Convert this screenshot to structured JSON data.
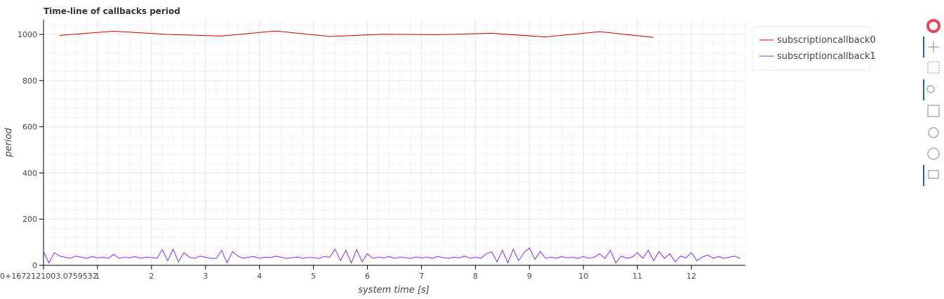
{
  "chart_data": {
    "type": "line",
    "title": "Time-line of callbacks period",
    "x_label": "system time [s]",
    "y_label": "period",
    "xlim": [
      0,
      13
    ],
    "ylim": [
      0,
      1064
    ],
    "xticks": [
      {
        "value": 0,
        "label": "0+1672121003.0759532"
      },
      1,
      2,
      3,
      4,
      5,
      6,
      7,
      8,
      9,
      10,
      11,
      12
    ],
    "yticks": [
      0,
      200,
      400,
      600,
      800,
      1000
    ],
    "grid": true,
    "legend": "outside-right",
    "series": [
      {
        "name": "subscriptioncallback0",
        "color": "#cc0000",
        "x": [
          0.3,
          1.3,
          2.3,
          3.3,
          4.3,
          5.3,
          6.3,
          7.3,
          8.3,
          9.3,
          10.3,
          11.3
        ],
        "values": [
          996,
          1014,
          1000,
          993,
          1015,
          991,
          1001,
          999,
          1005,
          989,
          1012,
          987
        ]
      },
      {
        "name": "subscriptioncallback1",
        "color": "#7f2aff",
        "x": [
          0.0,
          0.1,
          0.2,
          0.3,
          0.4,
          0.5,
          0.6,
          0.7,
          0.8,
          0.9,
          1.0,
          1.1,
          1.2,
          1.3,
          1.4,
          1.5,
          1.6,
          1.7,
          1.8,
          1.9,
          2.0,
          2.1,
          2.2,
          2.3,
          2.4,
          2.5,
          2.6,
          2.7,
          2.8,
          2.9,
          3.0,
          3.1,
          3.2,
          3.3,
          3.4,
          3.5,
          3.6,
          3.7,
          3.8,
          3.9,
          4.0,
          4.1,
          4.2,
          4.3,
          4.4,
          4.5,
          4.6,
          4.7,
          4.8,
          4.9,
          5.0,
          5.1,
          5.2,
          5.3,
          5.4,
          5.5,
          5.6,
          5.7,
          5.8,
          5.9,
          6.0,
          6.1,
          6.2,
          6.3,
          6.4,
          6.5,
          6.6,
          6.7,
          6.8,
          6.9,
          7.0,
          7.1,
          7.2,
          7.3,
          7.4,
          7.5,
          7.6,
          7.7,
          7.8,
          7.9,
          8.0,
          8.1,
          8.2,
          8.3,
          8.4,
          8.5,
          8.6,
          8.7,
          8.8,
          8.9,
          9.0,
          9.1,
          9.2,
          9.3,
          9.4,
          9.5,
          9.6,
          9.7,
          9.8,
          9.9,
          10.0,
          10.1,
          10.2,
          10.3,
          10.4,
          10.5,
          10.6,
          10.7,
          10.8,
          10.9,
          11.0,
          11.1,
          11.2,
          11.3,
          11.4,
          11.5,
          11.6,
          11.7,
          11.8,
          11.9,
          12.0,
          12.1,
          12.2,
          12.3,
          12.4,
          12.5,
          12.6,
          12.7,
          12.8,
          12.9
        ],
        "values": [
          60,
          10,
          55,
          40,
          35,
          30,
          40,
          35,
          30,
          38,
          32,
          35,
          30,
          48,
          30,
          35,
          32,
          38,
          30,
          35,
          33,
          30,
          68,
          20,
          70,
          15,
          55,
          35,
          30,
          40,
          35,
          30,
          30,
          65,
          10,
          60,
          40,
          30,
          35,
          38,
          30,
          35,
          33,
          40,
          35,
          30,
          32,
          36,
          30,
          34,
          33,
          30,
          38,
          35,
          70,
          20,
          65,
          10,
          68,
          15,
          50,
          30,
          35,
          32,
          38,
          30,
          35,
          33,
          30,
          36,
          32,
          35,
          30,
          38,
          33,
          30,
          35,
          32,
          40,
          30,
          35,
          30,
          50,
          58,
          15,
          65,
          10,
          70,
          20,
          55,
          75,
          25,
          60,
          30,
          35,
          30,
          38,
          32,
          35,
          30,
          38,
          30,
          35,
          50,
          30,
          65,
          10,
          40,
          30,
          35,
          55,
          30,
          65,
          20,
          60,
          30,
          50,
          15,
          40,
          32,
          55,
          20,
          35,
          45,
          30,
          38,
          30,
          35,
          40,
          30
        ]
      }
    ]
  }
}
